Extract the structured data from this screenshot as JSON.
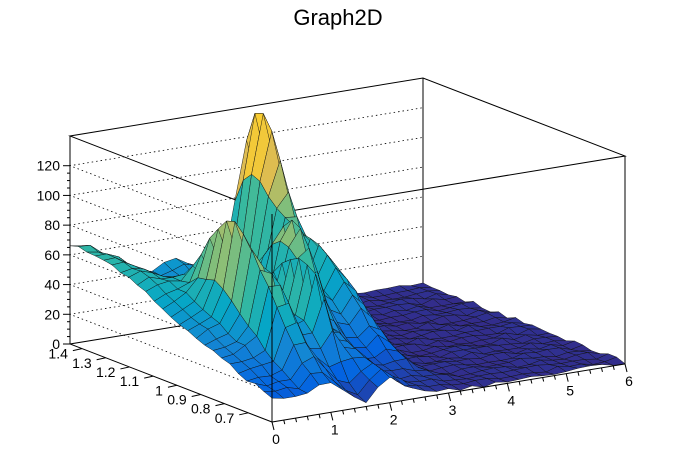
{
  "chart_data": {
    "type": "surface3d",
    "title": "Graph2D",
    "x_range": [
      0,
      6
    ],
    "y_range": [
      0.6,
      1.45
    ],
    "z_range": [
      0,
      140
    ],
    "x_ticks": [
      "0",
      "1",
      "2",
      "3",
      "4",
      "5",
      "6"
    ],
    "y_ticks": [
      "0.7",
      "0.8",
      "0.9",
      "1",
      "1.1",
      "1.2",
      "1.3",
      "1.4"
    ],
    "z_ticks": [
      "0",
      "20",
      "40",
      "60",
      "80",
      "100",
      "120"
    ],
    "palette": [
      "#352a87",
      "#0363e1",
      "#1485d4",
      "#06a7c6",
      "#38b99e",
      "#92bf73",
      "#d9ba56",
      "#fcce2e",
      "#f9fb0e"
    ],
    "peaks": [
      {
        "x": 3.05,
        "y": 1.4,
        "z": 135
      },
      {
        "x": 2.15,
        "y": 1.05,
        "z": 108
      },
      {
        "x": 0.75,
        "y": 0.98,
        "z": 62
      }
    ],
    "grid": true
  }
}
